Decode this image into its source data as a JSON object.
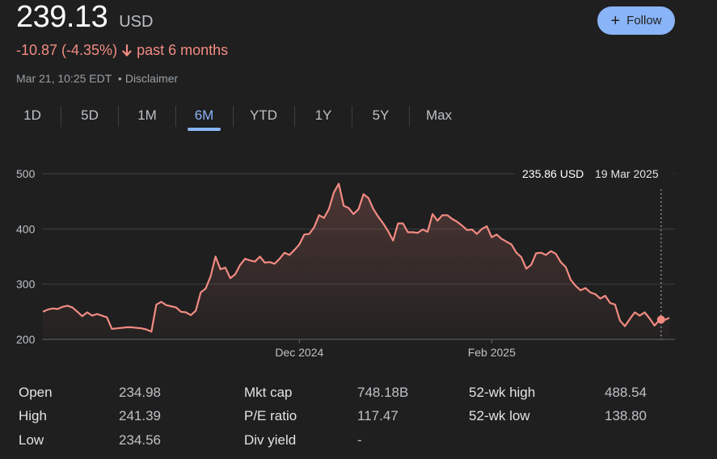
{
  "header": {
    "price": "239.13",
    "currency": "USD",
    "change": "-10.87 (-4.35%)",
    "period": "past 6 months",
    "timestamp": "Mar 21, 10:25 EDT",
    "separator": "•",
    "disclaimer": "Disclaimer",
    "change_color": "#f28b82",
    "arrow_icon": "arrow-down-icon"
  },
  "follow": {
    "label": "Follow",
    "icon": "plus-icon",
    "color": "#8ab4f8"
  },
  "tabs": [
    {
      "label": "1D"
    },
    {
      "label": "5D"
    },
    {
      "label": "1M"
    },
    {
      "label": "6M",
      "active": true
    },
    {
      "label": "YTD"
    },
    {
      "label": "1Y"
    },
    {
      "label": "5Y"
    },
    {
      "label": "Max"
    }
  ],
  "tooltip": {
    "price": "235.86 USD",
    "date": "19 Mar 2025"
  },
  "chart_data": {
    "type": "area",
    "title": "",
    "xlabel": "",
    "ylabel": "",
    "ylim": [
      200,
      500
    ],
    "yticks": [
      200,
      300,
      400,
      500
    ],
    "xticks": [
      {
        "label": "Dec 2024",
        "index": 52
      },
      {
        "label": "Feb 2025",
        "index": 91
      }
    ],
    "line_color": "#f28b82",
    "grid": true,
    "series": [
      {
        "values": [
          250,
          254,
          256,
          255,
          259,
          261,
          258,
          250,
          242,
          249,
          243,
          246,
          243,
          240,
          219,
          220,
          221,
          222,
          222,
          221,
          220,
          218,
          214,
          263,
          268,
          262,
          260,
          258,
          250,
          249,
          244,
          252,
          285,
          292,
          314,
          350,
          327,
          330,
          311,
          318,
          335,
          346,
          343,
          341,
          350,
          339,
          340,
          337,
          346,
          357,
          353,
          362,
          372,
          390,
          391,
          403,
          425,
          420,
          436,
          466,
          482,
          442,
          438,
          427,
          436,
          463,
          456,
          436,
          422,
          410,
          396,
          379,
          410,
          410,
          394,
          394,
          393,
          399,
          395,
          427,
          415,
          425,
          425,
          418,
          413,
          406,
          398,
          399,
          391,
          400,
          405,
          385,
          390,
          382,
          377,
          372,
          357,
          349,
          328,
          335,
          356,
          357,
          353,
          360,
          355,
          340,
          331,
          308,
          297,
          289,
          293,
          285,
          282,
          274,
          279,
          266,
          263,
          234,
          224,
          237,
          249,
          243,
          249,
          238,
          225,
          235,
          235,
          239
        ]
      }
    ]
  },
  "stats": [
    {
      "label": "Open",
      "value": "234.98"
    },
    {
      "label": "High",
      "value": "241.39"
    },
    {
      "label": "Low",
      "value": "234.56"
    },
    {
      "label": "Mkt cap",
      "value": "748.18B"
    },
    {
      "label": "P/E ratio",
      "value": "117.47"
    },
    {
      "label": "Div yield",
      "value": "-"
    },
    {
      "label": "52-wk high",
      "value": "488.54"
    },
    {
      "label": "52-wk low",
      "value": "138.80"
    }
  ]
}
